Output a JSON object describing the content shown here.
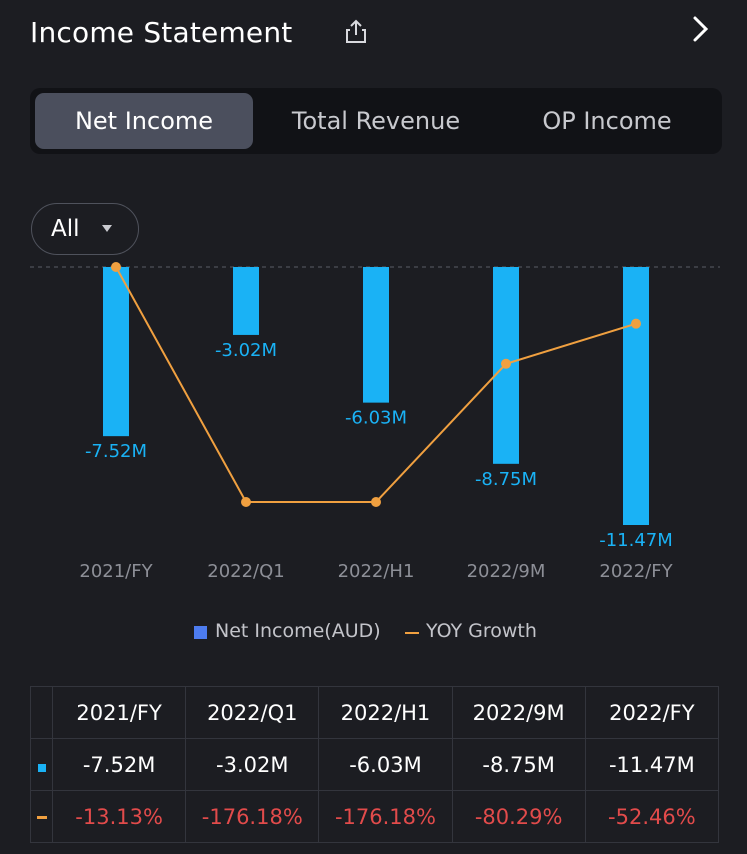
{
  "header": {
    "title": "Income Statement"
  },
  "tabs": [
    {
      "label": "Net Income",
      "active": true
    },
    {
      "label": "Total Revenue",
      "active": false
    },
    {
      "label": "OP Income",
      "active": false
    }
  ],
  "filter": {
    "label": "All"
  },
  "legend": {
    "bar_label": "Net Income(AUD)",
    "line_label": "YOY Growth"
  },
  "colors": {
    "bar": "#1ab2f5",
    "line": "#f0a040",
    "legend_bar": "#4d7cf0",
    "negative": "#e24b4b"
  },
  "chart_data": {
    "type": "bar",
    "categories": [
      "2021/FY",
      "2022/Q1",
      "2022/H1",
      "2022/9M",
      "2022/FY"
    ],
    "series": [
      {
        "name": "Net Income(AUD)",
        "type": "bar",
        "values": [
          -7.52,
          -3.02,
          -6.03,
          -8.75,
          -11.47
        ],
        "labels": [
          "-7.52M",
          "-3.02M",
          "-6.03M",
          "-8.75M",
          "-11.47M"
        ],
        "unit": "M"
      },
      {
        "name": "YOY Growth",
        "type": "line",
        "values": [
          -13.13,
          -176.18,
          -176.18,
          -80.29,
          -52.46
        ],
        "unit": "%"
      }
    ],
    "bar_ylim": [
      -11.47,
      0
    ],
    "line_ylim": [
      -176.18,
      -13.13
    ],
    "zero_line": "dashed",
    "grid": false,
    "legend_position": "bottom"
  },
  "table": {
    "headers": [
      "2021/FY",
      "2022/Q1",
      "2022/H1",
      "2022/9M",
      "2022/FY"
    ],
    "income_row": [
      "-7.52M",
      "-3.02M",
      "-6.03M",
      "-8.75M",
      "-11.47M"
    ],
    "growth_row": [
      "-13.13%",
      "-176.18%",
      "-176.18%",
      "-80.29%",
      "-52.46%"
    ]
  }
}
